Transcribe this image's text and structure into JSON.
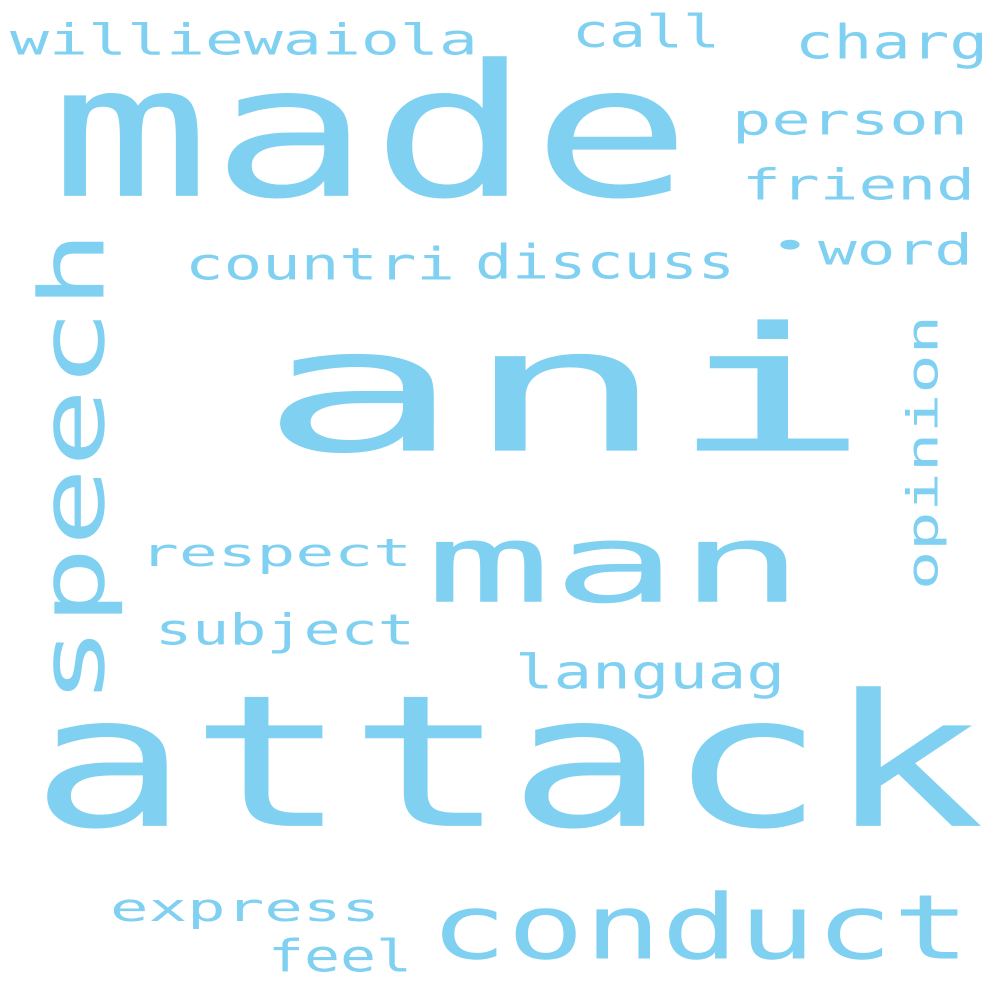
{
  "colors": {
    "background": "#ffffff",
    "word": "#7fd0f1"
  },
  "words": [
    {
      "id": "ani",
      "text": "ani",
      "orientation": "horizontal"
    },
    {
      "id": "attack",
      "text": "attack",
      "orientation": "horizontal"
    },
    {
      "id": "made",
      "text": "made",
      "orientation": "horizontal"
    },
    {
      "id": "man",
      "text": "man",
      "orientation": "horizontal"
    },
    {
      "id": "speech",
      "text": "speech",
      "orientation": "vertical"
    },
    {
      "id": "conduct",
      "text": "conduct",
      "orientation": "horizontal"
    },
    {
      "id": "williewaiola",
      "text": "williewaiola",
      "orientation": "horizontal"
    },
    {
      "id": "call",
      "text": "call",
      "orientation": "horizontal"
    },
    {
      "id": "charg",
      "text": "charg",
      "orientation": "horizontal"
    },
    {
      "id": "person",
      "text": "person",
      "orientation": "horizontal"
    },
    {
      "id": "friend",
      "text": "friend",
      "orientation": "horizontal"
    },
    {
      "id": "word",
      "text": "word",
      "orientation": "horizontal"
    },
    {
      "id": "bullet",
      "text": "•",
      "orientation": "horizontal"
    },
    {
      "id": "countri",
      "text": "countri",
      "orientation": "horizontal"
    },
    {
      "id": "discuss",
      "text": "discuss",
      "orientation": "horizontal"
    },
    {
      "id": "opinion",
      "text": "opinion",
      "orientation": "vertical"
    },
    {
      "id": "respect",
      "text": "respect",
      "orientation": "horizontal"
    },
    {
      "id": "subject",
      "text": "subject",
      "orientation": "horizontal"
    },
    {
      "id": "languag",
      "text": "languag",
      "orientation": "horizontal"
    },
    {
      "id": "express",
      "text": "express",
      "orientation": "horizontal"
    },
    {
      "id": "feel",
      "text": "feel",
      "orientation": "horizontal"
    }
  ]
}
